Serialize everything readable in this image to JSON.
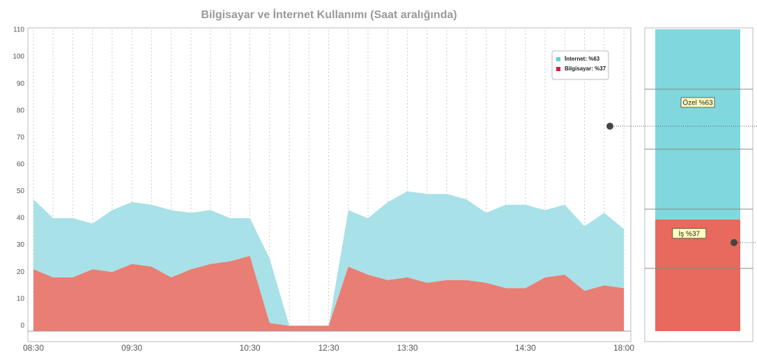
{
  "chart_data": [
    {
      "type": "area",
      "title": "Bilgisayar ve İnternet Kullanımı  (Saat aralığında)",
      "categories": [
        "08:30",
        null,
        null,
        null,
        null,
        "09:30",
        null,
        null,
        null,
        null,
        null,
        "10:30",
        null,
        null,
        null,
        "12:30",
        null,
        null,
        null,
        "13:30",
        null,
        null,
        null,
        null,
        null,
        "14:30",
        null,
        null,
        null,
        null,
        "18:00"
      ],
      "series": [
        {
          "name": "İnternet:  %63",
          "color": "#a8e1e7",
          "values": [
            26,
            22,
            22,
            17,
            23,
            23,
            23,
            25,
            21,
            20,
            16,
            14,
            24,
            0,
            0,
            0,
            21,
            21,
            29,
            32,
            33,
            32,
            30,
            26,
            31,
            31,
            25,
            26,
            24,
            27,
            22
          ]
        },
        {
          "name": "Bilgisayar: %37",
          "color": "#e97e74",
          "values": [
            21,
            18,
            18,
            21,
            20,
            23,
            22,
            18,
            21,
            23,
            24,
            26,
            1,
            0,
            0,
            0,
            22,
            19,
            17,
            18,
            16,
            17,
            17,
            16,
            14,
            14,
            18,
            19,
            13,
            15,
            14
          ]
        }
      ],
      "ylim": [
        -2,
        110
      ],
      "yticks": [
        0,
        10,
        20,
        30,
        40,
        50,
        60,
        70,
        80,
        90,
        100,
        110
      ],
      "grid": true,
      "stacked": true,
      "legend": "top-right"
    },
    {
      "type": "bar",
      "stacked": true,
      "categories": [
        "Özel",
        "İş"
      ],
      "values": [
        63,
        37
      ],
      "value_labels": [
        "Özel %63",
        "İş %37"
      ],
      "colors": [
        "#80d8de",
        "#e8695e"
      ],
      "ylim": [
        0,
        100
      ]
    }
  ]
}
